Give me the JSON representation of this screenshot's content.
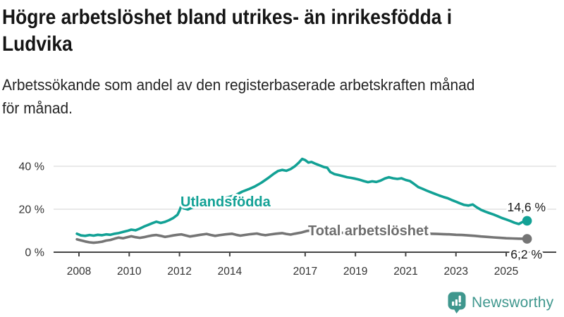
{
  "header": {
    "title_line1": "Högre arbetslöshet bland utrikes- än inrikesfödda i",
    "title_line2": "Ludvika",
    "subtitle_line1": "Arbetssökande som andel av den registerbaserade arbetskraften månad",
    "subtitle_line2": "för månad."
  },
  "footer": {
    "brand": "Newsworthy"
  },
  "colors": {
    "accent_teal": "#12a195",
    "line_gray": "#757575",
    "label_gray": "#6d6d6d",
    "brand_teal": "#3f978e",
    "grid": "#dcdcdc",
    "axis": "#454545",
    "tick_text": "#333333",
    "value_text": "#1a1a1a"
  },
  "chart_data": {
    "type": "line",
    "title": "Arbetssökande som andel av den registerbaserade arbetskraften månad för månad.",
    "unit": "%",
    "grid": true,
    "x_range_years": [
      2007.9,
      2025.85
    ],
    "ylim": [
      0,
      48
    ],
    "y_ticks": [
      {
        "value": 0,
        "label": "0 %"
      },
      {
        "value": 20,
        "label": "20 %"
      },
      {
        "value": 40,
        "label": "40 %"
      }
    ],
    "x_ticks": [
      {
        "year": 2008,
        "label": "2008"
      },
      {
        "year": 2010,
        "label": "2010"
      },
      {
        "year": 2012,
        "label": "2012"
      },
      {
        "year": 2014,
        "label": "2014"
      },
      {
        "year": 2017,
        "label": "2017"
      },
      {
        "year": 2019,
        "label": "2019"
      },
      {
        "year": 2021,
        "label": "2021"
      },
      {
        "year": 2023,
        "label": "2023"
      },
      {
        "year": 2025,
        "label": "2025"
      }
    ],
    "series": [
      {
        "id": "utlandsfodda",
        "name": "Utlandsfödda",
        "color": "#12a195",
        "end_label": "14,6 %",
        "end_value": 14.6,
        "points": [
          [
            2007.92,
            8.6
          ],
          [
            2008.08,
            7.8
          ],
          [
            2008.25,
            7.6
          ],
          [
            2008.42,
            8.0
          ],
          [
            2008.58,
            7.7
          ],
          [
            2008.75,
            8.1
          ],
          [
            2008.92,
            7.9
          ],
          [
            2009.08,
            8.3
          ],
          [
            2009.25,
            8.1
          ],
          [
            2009.42,
            8.6
          ],
          [
            2009.58,
            8.9
          ],
          [
            2009.75,
            9.4
          ],
          [
            2009.92,
            9.9
          ],
          [
            2010.08,
            10.5
          ],
          [
            2010.25,
            10.2
          ],
          [
            2010.42,
            11.0
          ],
          [
            2010.58,
            11.9
          ],
          [
            2010.75,
            12.7
          ],
          [
            2010.92,
            13.5
          ],
          [
            2011.08,
            14.2
          ],
          [
            2011.25,
            13.6
          ],
          [
            2011.42,
            14.1
          ],
          [
            2011.58,
            14.9
          ],
          [
            2011.75,
            15.9
          ],
          [
            2011.92,
            17.4
          ],
          [
            2012.0,
            19.3
          ],
          [
            2012.08,
            21.9
          ],
          [
            2012.17,
            20.4
          ],
          [
            2012.33,
            19.9
          ],
          [
            2012.5,
            20.7
          ],
          [
            2012.67,
            21.3
          ],
          [
            2012.83,
            22.0
          ],
          [
            2013.0,
            22.8
          ],
          [
            2013.25,
            23.3
          ],
          [
            2013.5,
            24.1
          ],
          [
            2013.75,
            25.0
          ],
          [
            2014.0,
            25.8
          ],
          [
            2014.25,
            26.7
          ],
          [
            2014.5,
            28.2
          ],
          [
            2014.75,
            29.3
          ],
          [
            2015.0,
            30.6
          ],
          [
            2015.25,
            32.3
          ],
          [
            2015.5,
            34.3
          ],
          [
            2015.75,
            36.5
          ],
          [
            2015.92,
            37.8
          ],
          [
            2016.08,
            38.3
          ],
          [
            2016.25,
            37.9
          ],
          [
            2016.42,
            38.7
          ],
          [
            2016.58,
            39.9
          ],
          [
            2016.75,
            41.7
          ],
          [
            2016.88,
            43.4
          ],
          [
            2017.0,
            42.9
          ],
          [
            2017.13,
            41.7
          ],
          [
            2017.25,
            42.0
          ],
          [
            2017.42,
            41.1
          ],
          [
            2017.58,
            40.4
          ],
          [
            2017.75,
            39.6
          ],
          [
            2017.88,
            39.3
          ],
          [
            2018.0,
            37.3
          ],
          [
            2018.17,
            36.3
          ],
          [
            2018.33,
            35.9
          ],
          [
            2018.5,
            35.4
          ],
          [
            2018.67,
            34.9
          ],
          [
            2018.83,
            34.6
          ],
          [
            2019.0,
            34.2
          ],
          [
            2019.17,
            33.7
          ],
          [
            2019.33,
            33.1
          ],
          [
            2019.5,
            32.6
          ],
          [
            2019.67,
            33.0
          ],
          [
            2019.83,
            32.7
          ],
          [
            2020.0,
            33.3
          ],
          [
            2020.17,
            34.3
          ],
          [
            2020.33,
            34.9
          ],
          [
            2020.5,
            34.4
          ],
          [
            2020.67,
            34.1
          ],
          [
            2020.83,
            34.4
          ],
          [
            2021.0,
            33.6
          ],
          [
            2021.17,
            33.1
          ],
          [
            2021.33,
            31.8
          ],
          [
            2021.5,
            30.3
          ],
          [
            2021.67,
            29.5
          ],
          [
            2021.83,
            28.7
          ],
          [
            2022.0,
            27.9
          ],
          [
            2022.17,
            27.1
          ],
          [
            2022.33,
            26.4
          ],
          [
            2022.5,
            25.7
          ],
          [
            2022.67,
            25.1
          ],
          [
            2022.83,
            24.3
          ],
          [
            2023.0,
            23.5
          ],
          [
            2023.17,
            22.7
          ],
          [
            2023.33,
            22.0
          ],
          [
            2023.5,
            21.7
          ],
          [
            2023.67,
            22.2
          ],
          [
            2023.83,
            20.9
          ],
          [
            2024.0,
            19.7
          ],
          [
            2024.17,
            18.9
          ],
          [
            2024.33,
            18.2
          ],
          [
            2024.5,
            17.5
          ],
          [
            2024.67,
            16.7
          ],
          [
            2024.83,
            15.9
          ],
          [
            2025.0,
            15.2
          ],
          [
            2025.17,
            14.5
          ],
          [
            2025.33,
            13.7
          ],
          [
            2025.5,
            13.1
          ],
          [
            2025.67,
            14.2
          ],
          [
            2025.83,
            14.6
          ]
        ]
      },
      {
        "id": "total",
        "name": "Total arbetslöshet",
        "color": "#757575",
        "end_label": "6,2 %",
        "end_value": 6.2,
        "points": [
          [
            2007.92,
            6.0
          ],
          [
            2008.08,
            5.5
          ],
          [
            2008.25,
            5.0
          ],
          [
            2008.42,
            4.6
          ],
          [
            2008.58,
            4.4
          ],
          [
            2008.75,
            4.6
          ],
          [
            2008.92,
            4.9
          ],
          [
            2009.08,
            5.4
          ],
          [
            2009.25,
            5.7
          ],
          [
            2009.42,
            6.3
          ],
          [
            2009.58,
            6.8
          ],
          [
            2009.75,
            6.5
          ],
          [
            2009.92,
            7.0
          ],
          [
            2010.08,
            7.4
          ],
          [
            2010.25,
            7.0
          ],
          [
            2010.42,
            6.7
          ],
          [
            2010.58,
            7.0
          ],
          [
            2010.75,
            7.4
          ],
          [
            2010.92,
            7.8
          ],
          [
            2011.08,
            8.0
          ],
          [
            2011.25,
            7.6
          ],
          [
            2011.42,
            7.1
          ],
          [
            2011.58,
            7.4
          ],
          [
            2011.75,
            7.8
          ],
          [
            2011.92,
            8.1
          ],
          [
            2012.08,
            8.3
          ],
          [
            2012.25,
            7.8
          ],
          [
            2012.42,
            7.3
          ],
          [
            2012.58,
            7.6
          ],
          [
            2012.83,
            8.1
          ],
          [
            2013.08,
            8.5
          ],
          [
            2013.25,
            8.0
          ],
          [
            2013.42,
            7.6
          ],
          [
            2013.58,
            7.9
          ],
          [
            2013.83,
            8.3
          ],
          [
            2014.08,
            8.6
          ],
          [
            2014.25,
            8.1
          ],
          [
            2014.42,
            7.7
          ],
          [
            2014.58,
            8.0
          ],
          [
            2014.83,
            8.4
          ],
          [
            2015.08,
            8.7
          ],
          [
            2015.25,
            8.2
          ],
          [
            2015.42,
            7.9
          ],
          [
            2015.58,
            8.2
          ],
          [
            2015.83,
            8.6
          ],
          [
            2016.08,
            8.9
          ],
          [
            2016.25,
            8.5
          ],
          [
            2016.42,
            8.2
          ],
          [
            2016.58,
            8.6
          ],
          [
            2016.83,
            9.1
          ],
          [
            2017.08,
            9.9
          ],
          [
            2017.25,
            10.1
          ],
          [
            2017.5,
            9.7
          ],
          [
            2017.75,
            9.4
          ],
          [
            2018.0,
            9.6
          ],
          [
            2018.25,
            9.3
          ],
          [
            2018.5,
            9.0
          ],
          [
            2018.75,
            9.2
          ],
          [
            2019.0,
            9.0
          ],
          [
            2019.25,
            8.8
          ],
          [
            2019.5,
            8.6
          ],
          [
            2019.75,
            8.8
          ],
          [
            2020.0,
            9.0
          ],
          [
            2020.25,
            9.6
          ],
          [
            2020.5,
            9.9
          ],
          [
            2020.75,
            9.6
          ],
          [
            2021.0,
            9.4
          ],
          [
            2021.25,
            9.2
          ],
          [
            2021.5,
            8.9
          ],
          [
            2021.75,
            8.7
          ],
          [
            2022.0,
            8.6
          ],
          [
            2022.25,
            8.5
          ],
          [
            2022.5,
            8.4
          ],
          [
            2022.75,
            8.3
          ],
          [
            2023.0,
            8.1
          ],
          [
            2023.25,
            8.0
          ],
          [
            2023.5,
            7.8
          ],
          [
            2023.75,
            7.6
          ],
          [
            2024.0,
            7.3
          ],
          [
            2024.25,
            7.1
          ],
          [
            2024.5,
            6.9
          ],
          [
            2024.75,
            6.7
          ],
          [
            2025.0,
            6.5
          ],
          [
            2025.25,
            6.4
          ],
          [
            2025.5,
            6.3
          ],
          [
            2025.83,
            6.2
          ]
        ]
      }
    ],
    "legend_position": "inline-annotations"
  }
}
